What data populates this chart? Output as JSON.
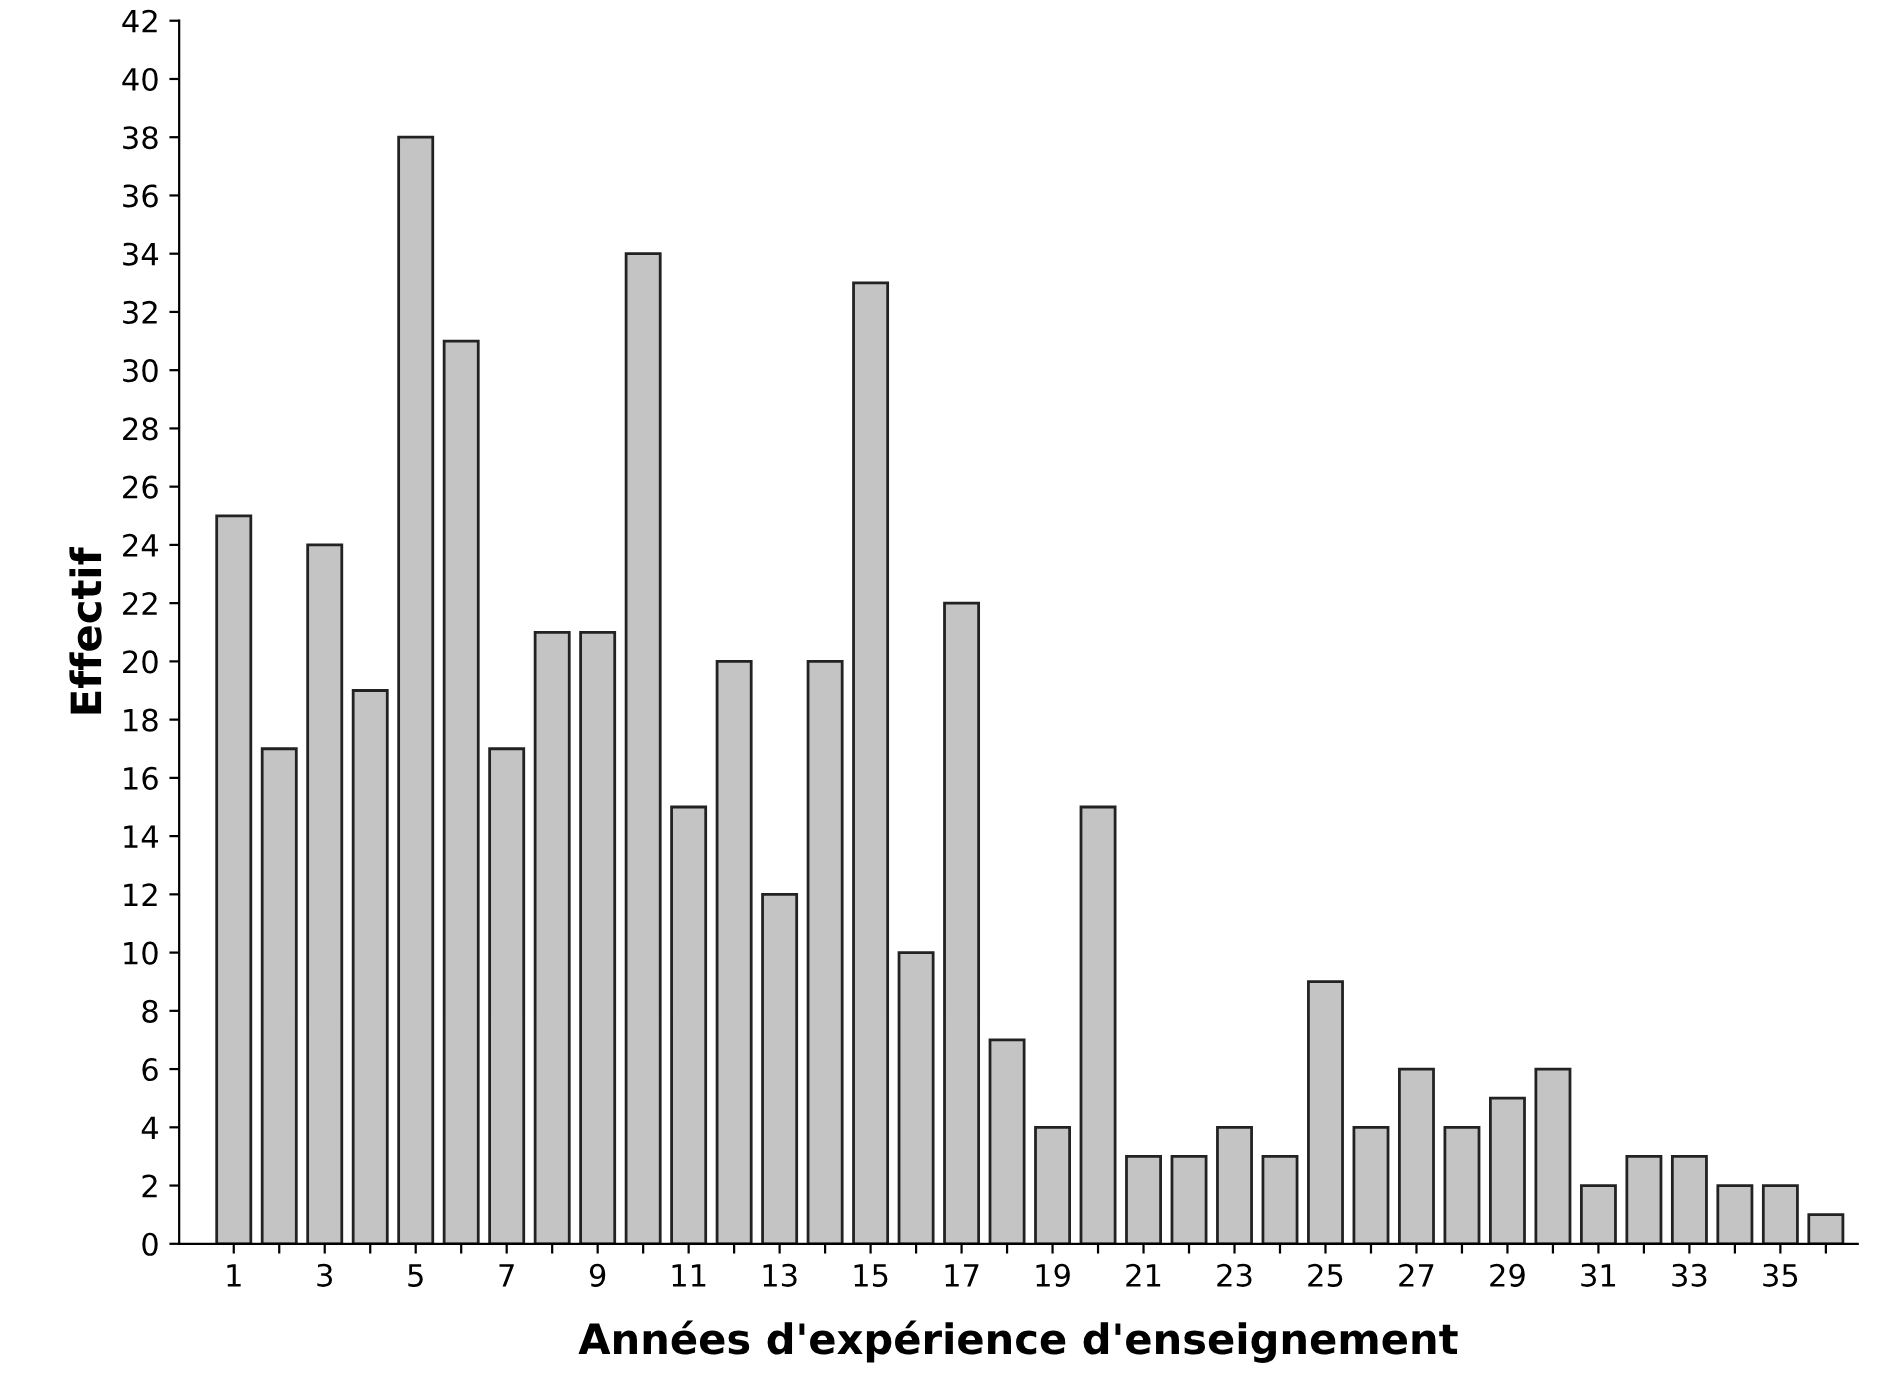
{
  "chart_data": {
    "type": "bar",
    "xlabel": "Années d'expérience d'enseignement",
    "ylabel": "Effectif",
    "categories": [
      "1",
      null,
      "3",
      null,
      "5",
      null,
      "7",
      null,
      "9",
      null,
      "11",
      null,
      "13",
      null,
      "15",
      null,
      "17",
      null,
      "19",
      null,
      "21",
      null,
      "23",
      null,
      "25",
      null,
      "27",
      null,
      "29",
      null,
      "31",
      null,
      "33",
      null,
      "35",
      null
    ],
    "values": [
      25,
      17,
      24,
      19,
      38,
      31,
      17,
      21,
      21,
      34,
      15,
      20,
      12,
      20,
      33,
      10,
      22,
      7,
      4,
      15,
      3,
      3,
      4,
      3,
      9,
      4,
      6,
      4,
      5,
      6,
      2,
      3,
      3,
      2,
      2,
      1
    ],
    "color": "#c4c4c4",
    "ylim": [
      0,
      42
    ],
    "yticks": [
      0,
      2,
      4,
      6,
      8,
      10,
      12,
      14,
      16,
      18,
      20,
      22,
      24,
      26,
      28,
      30,
      32,
      34,
      36,
      38,
      40,
      42
    ],
    "grid": false
  }
}
